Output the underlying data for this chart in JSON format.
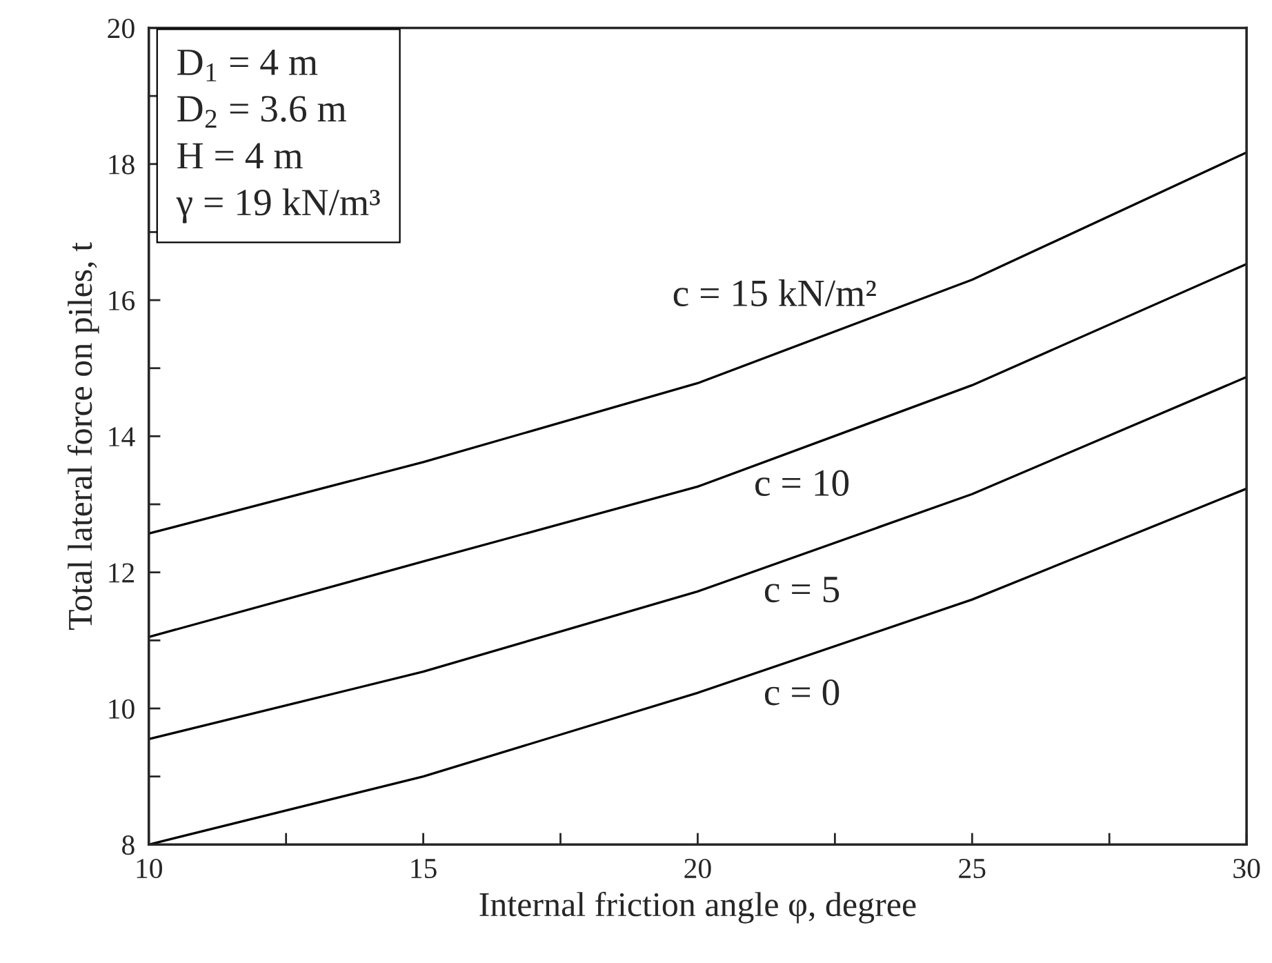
{
  "chart_data": {
    "type": "line",
    "xlabel": "Internal friction angle φ, degree",
    "ylabel": "Total lateral force on piles, t",
    "x": [
      10,
      15,
      20,
      25,
      30
    ],
    "series": [
      {
        "name": "c = 0",
        "color": "#000000",
        "values": [
          8.0,
          9.0,
          10.23,
          11.6,
          13.23
        ]
      },
      {
        "name": "c = 5",
        "color": "#000000",
        "values": [
          9.55,
          10.54,
          11.72,
          13.15,
          14.87
        ]
      },
      {
        "name": "c = 10",
        "color": "#000000",
        "values": [
          11.05,
          12.16,
          13.26,
          14.75,
          16.53
        ]
      },
      {
        "name": "c = 15 kN/m²",
        "color": "#000000",
        "values": [
          12.57,
          13.62,
          14.78,
          16.3,
          18.17
        ]
      }
    ],
    "xlim": [
      10,
      30
    ],
    "ylim": [
      8,
      20
    ],
    "xticks": [
      10,
      {
        "value": 12.5,
        "label": null
      },
      15,
      {
        "value": 17.5,
        "label": null
      },
      20,
      {
        "value": 22.5,
        "label": null
      },
      25,
      {
        "value": 27.5,
        "label": null
      },
      30
    ],
    "yticks": [
      8,
      {
        "value": 9,
        "label": null
      },
      10,
      {
        "value": 11,
        "label": null
      },
      12,
      {
        "value": 13,
        "label": null
      },
      14,
      {
        "value": 15,
        "label": null
      },
      16,
      {
        "value": 17,
        "label": null
      },
      18,
      {
        "value": 19,
        "label": null
      },
      20
    ],
    "annotations": [
      "D$_{1}$ = 4 m\nD$_{2}$ = 3.6 m\nH = 4 m\nγ = 19 kN/m³"
    ],
    "grid": false,
    "legend": false,
    "marker": "none",
    "line_style": "solid"
  }
}
